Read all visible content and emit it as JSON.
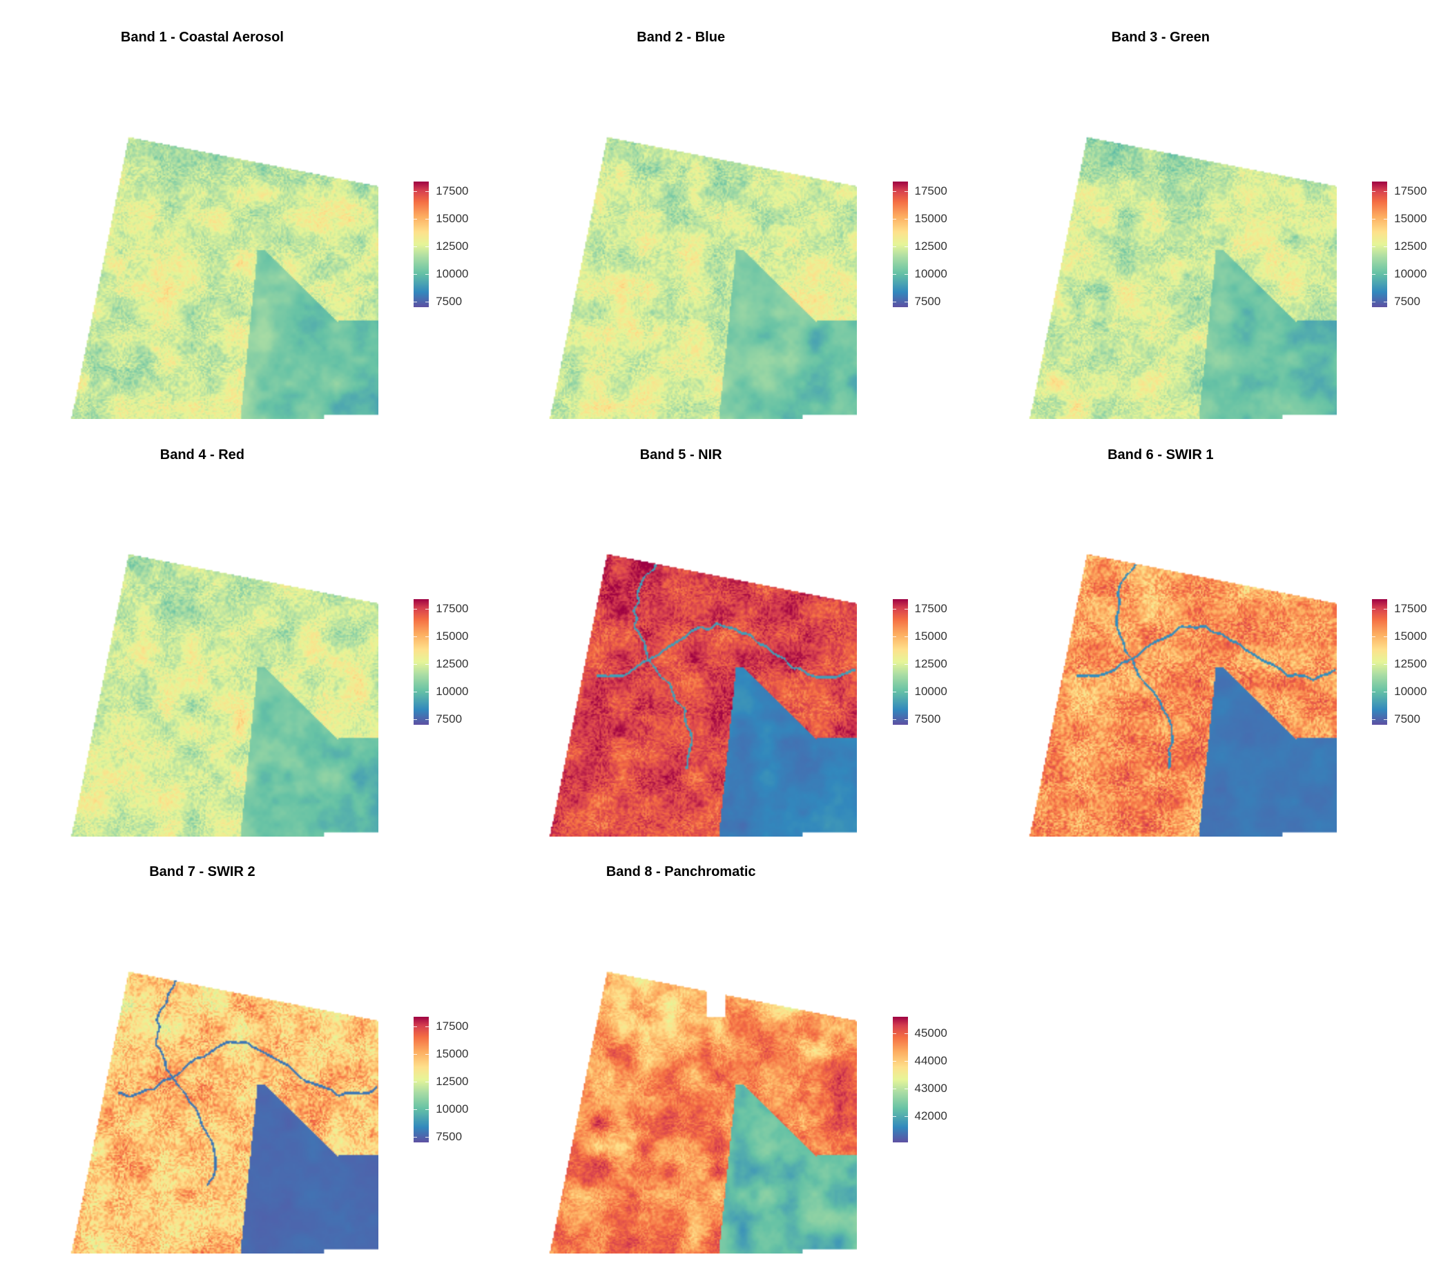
{
  "colormap": [
    "#5e4fa2",
    "#3288bd",
    "#66c2a5",
    "#abdda4",
    "#e6f598",
    "#fee08b",
    "#fdae61",
    "#f46d43",
    "#d53e4f",
    "#9e0142"
  ],
  "panels": [
    {
      "title": "Band 1 - Coastal Aerosol",
      "legend_ticks": [
        "17500",
        "15000",
        "12500",
        "10000",
        "7500"
      ],
      "style": "visible"
    },
    {
      "title": "Band 2 - Blue",
      "legend_ticks": [
        "17500",
        "15000",
        "12500",
        "10000",
        "7500"
      ],
      "style": "visible"
    },
    {
      "title": "Band 3 - Green",
      "legend_ticks": [
        "17500",
        "15000",
        "12500",
        "10000",
        "7500"
      ],
      "style": "visible"
    },
    {
      "title": "Band 4 - Red",
      "legend_ticks": [
        "17500",
        "15000",
        "12500",
        "10000",
        "7500"
      ],
      "style": "visible"
    },
    {
      "title": "Band 5 - NIR",
      "legend_ticks": [
        "17500",
        "15000",
        "12500",
        "10000",
        "7500"
      ],
      "style": "nir"
    },
    {
      "title": "Band 6 - SWIR 1",
      "legend_ticks": [
        "17500",
        "15000",
        "12500",
        "10000",
        "7500"
      ],
      "style": "swir1"
    },
    {
      "title": "Band 7 - SWIR 2",
      "legend_ticks": [
        "17500",
        "15000",
        "12500",
        "10000",
        "7500"
      ],
      "style": "swir2"
    },
    {
      "title": "Band 8 - Panchromatic",
      "legend_ticks": [
        "45000",
        "44000",
        "43000",
        "42000"
      ],
      "style": "pan"
    }
  ]
}
